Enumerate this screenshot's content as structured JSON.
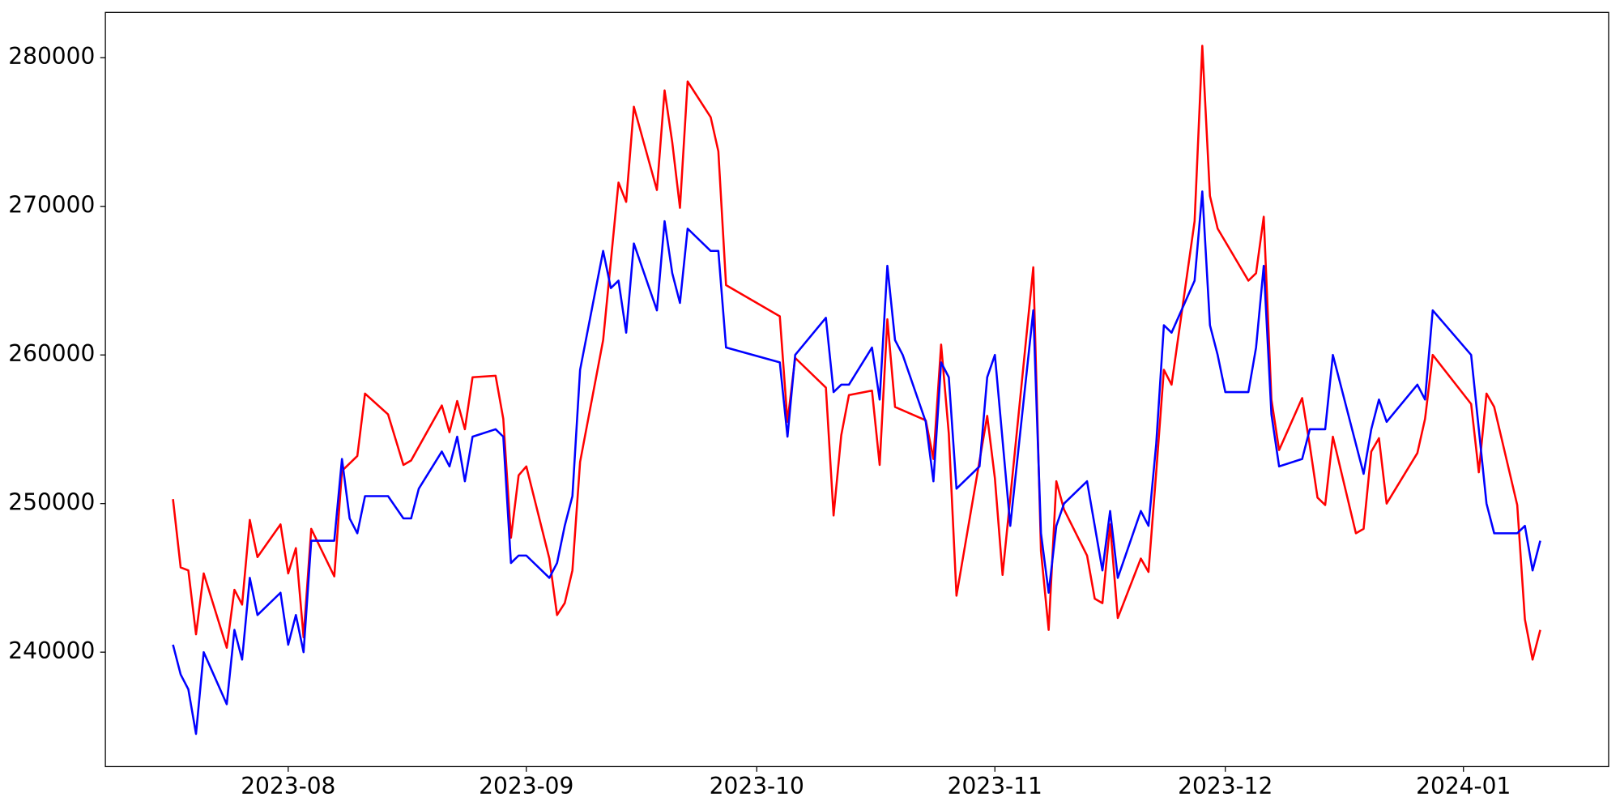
{
  "chart_data": {
    "type": "line",
    "xlim": [
      19546.2,
      19741.9
    ],
    "xticks": [
      {
        "value": 19570,
        "label": "2023-08"
      },
      {
        "value": 19601,
        "label": "2023-09"
      },
      {
        "value": 19631,
        "label": "2023-10"
      },
      {
        "value": 19662,
        "label": "2023-11"
      },
      {
        "value": 19692,
        "label": "2023-12"
      },
      {
        "value": 19723,
        "label": "2024-01"
      }
    ],
    "ylim": [
      232300,
      283050
    ],
    "yticks": [
      240000,
      250000,
      260000,
      270000,
      280000
    ],
    "grid": false,
    "series": [
      {
        "color": "red",
        "x": [
          19555,
          19556,
          19557,
          19558,
          19559,
          19562,
          19563,
          19564,
          19565,
          19566,
          19569,
          19570,
          19571,
          19572,
          19573,
          19576,
          19577,
          19579,
          19580,
          19583,
          19585,
          19586,
          19590,
          19591,
          19592,
          19593,
          19594,
          19597,
          19598,
          19599,
          19600,
          19601,
          19604,
          19605,
          19606,
          19607,
          19608,
          19611,
          19613,
          19614,
          19615,
          19618,
          19619,
          19620,
          19621,
          19622,
          19625,
          19626,
          19627,
          19634,
          19635,
          19636,
          19640,
          19641,
          19642,
          19643,
          19646,
          19647,
          19648,
          19649,
          19653,
          19654,
          19655,
          19656,
          19657,
          19661,
          19662,
          19663,
          19667,
          19668,
          19669,
          19670,
          19671,
          19674,
          19675,
          19676,
          19677,
          19678,
          19681,
          19682,
          19683,
          19684,
          19685,
          19688,
          19689,
          19690,
          19691,
          19695,
          19696,
          19697,
          19698,
          19699,
          19702,
          19703,
          19704,
          19705,
          19706,
          19709,
          19710,
          19711,
          19712,
          19713,
          19717,
          19718,
          19719,
          19724,
          19725,
          19726,
          19727,
          19730,
          19731,
          19732,
          19733
        ],
        "values": [
          250300,
          245700,
          245500,
          241200,
          245300,
          240300,
          244200,
          243200,
          248900,
          246400,
          248600,
          245300,
          247000,
          241000,
          248300,
          245100,
          252200,
          253200,
          257400,
          256000,
          252600,
          252900,
          256600,
          254800,
          256900,
          255000,
          258500,
          258600,
          255700,
          247700,
          251900,
          252500,
          246300,
          242500,
          243300,
          245500,
          252800,
          261000,
          271600,
          270300,
          276700,
          271100,
          277800,
          274300,
          269900,
          278400,
          276000,
          273700,
          264700,
          262600,
          255500,
          259800,
          257800,
          249200,
          254600,
          257300,
          257600,
          252600,
          262400,
          256500,
          255600,
          253000,
          260700,
          254700,
          243800,
          255900,
          251700,
          245200,
          265900,
          246800,
          241500,
          251500,
          249600,
          246500,
          243600,
          243300,
          248600,
          242300,
          246300,
          245400,
          252100,
          259000,
          258000,
          269000,
          280800,
          270700,
          268500,
          265000,
          265500,
          269300,
          257000,
          253600,
          257100,
          253900,
          250400,
          249900,
          254500,
          248000,
          248300,
          253500,
          254400,
          250000,
          253400,
          255700,
          260000,
          256700,
          252100,
          257400,
          256500,
          249900,
          242200,
          239500,
          241500
        ]
      },
      {
        "color": "blue",
        "x": [
          19555,
          19556,
          19557,
          19558,
          19559,
          19562,
          19563,
          19564,
          19565,
          19566,
          19569,
          19570,
          19571,
          19572,
          19573,
          19576,
          19577,
          19578,
          19579,
          19580,
          19583,
          19585,
          19586,
          19587,
          19590,
          19591,
          19592,
          19593,
          19594,
          19597,
          19598,
          19599,
          19600,
          19601,
          19604,
          19605,
          19606,
          19607,
          19608,
          19611,
          19612,
          19613,
          19614,
          19615,
          19618,
          19619,
          19620,
          19621,
          19622,
          19625,
          19626,
          19627,
          19634,
          19635,
          19636,
          19640,
          19641,
          19642,
          19643,
          19646,
          19647,
          19648,
          19649,
          19650,
          19653,
          19654,
          19655,
          19656,
          19657,
          19660,
          19661,
          19662,
          19664,
          19667,
          19668,
          19669,
          19670,
          19671,
          19674,
          19676,
          19677,
          19678,
          19681,
          19682,
          19683,
          19684,
          19685,
          19688,
          19689,
          19690,
          19691,
          19692,
          19695,
          19696,
          19697,
          19698,
          19699,
          19702,
          19703,
          19705,
          19706,
          19710,
          19711,
          19712,
          19713,
          19717,
          19718,
          19719,
          19724,
          19725,
          19726,
          19727,
          19730,
          19731,
          19732,
          19733
        ],
        "values": [
          240500,
          238500,
          237500,
          234500,
          240000,
          236500,
          241500,
          239500,
          245000,
          242500,
          244000,
          240500,
          242500,
          240000,
          247500,
          247500,
          253000,
          249000,
          248000,
          250500,
          250500,
          249000,
          249000,
          251000,
          253500,
          252500,
          254500,
          251500,
          254500,
          255000,
          254500,
          246000,
          246500,
          246500,
          245000,
          246000,
          248500,
          250500,
          259000,
          267000,
          264500,
          265000,
          261500,
          267500,
          263000,
          269000,
          265500,
          263500,
          268500,
          267000,
          267000,
          260500,
          259500,
          254500,
          260000,
          262500,
          257500,
          258000,
          258000,
          260500,
          257000,
          266000,
          261000,
          260000,
          255500,
          251500,
          259500,
          258500,
          251000,
          252500,
          258500,
          260000,
          248500,
          263000,
          248000,
          244000,
          248500,
          250000,
          251500,
          245500,
          249500,
          245000,
          249500,
          248500,
          254000,
          262000,
          261500,
          265000,
          271000,
          262000,
          260000,
          257500,
          257500,
          260500,
          266000,
          256000,
          252500,
          253000,
          255000,
          255000,
          260000,
          252000,
          255000,
          257000,
          255500,
          258000,
          257000,
          263000,
          260000,
          255000,
          250000,
          248000,
          248000,
          248500,
          245500,
          247500
        ]
      }
    ]
  }
}
